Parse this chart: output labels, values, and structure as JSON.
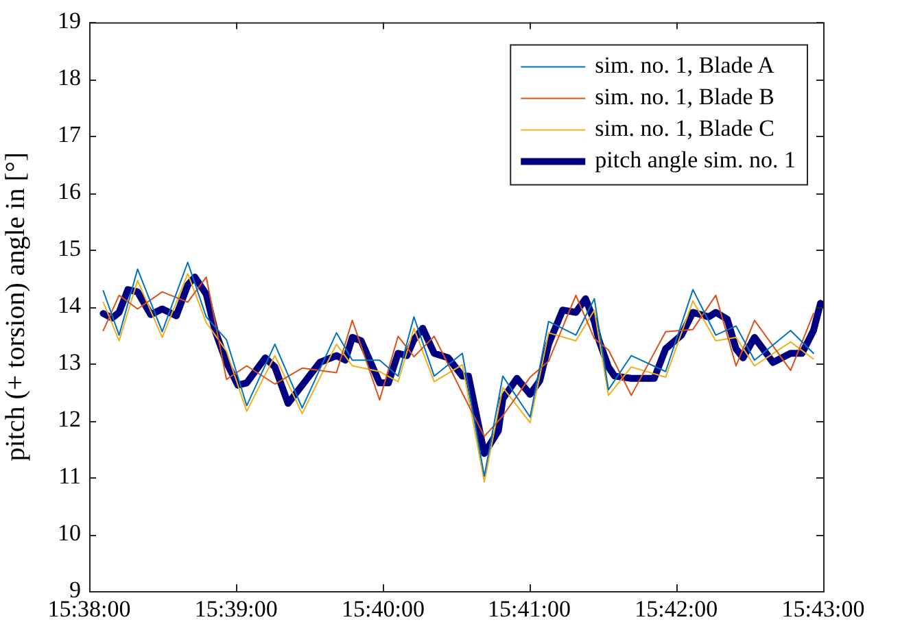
{
  "chart_data": {
    "type": "line",
    "ylabel": "pitch (+ torsion) angle in [°]",
    "xlim": [
      15.6333,
      15.7167
    ],
    "xticks": [
      {
        "value": 15.6333,
        "label": "15:38:00"
      },
      {
        "value": 15.65,
        "label": "15:39:00"
      },
      {
        "value": 15.6667,
        "label": "15:40:00"
      },
      {
        "value": 15.6833,
        "label": "15:41:00"
      },
      {
        "value": 15.7,
        "label": "15:42:00"
      },
      {
        "value": 15.7167,
        "label": "15:43:00"
      }
    ],
    "ylim": [
      9,
      19
    ],
    "yticks": [
      9,
      10,
      11,
      12,
      13,
      14,
      15,
      16,
      17,
      18,
      19
    ],
    "grid": false,
    "legend": "top right",
    "marker": "none",
    "line_style": "solid",
    "series": [
      {
        "name": "sim. no. 1, Blade A",
        "color": "#0072bd",
        "x": [
          15.6349,
          15.6367,
          15.6388,
          15.6416,
          15.6445,
          15.6466,
          15.6489,
          15.6512,
          15.6544,
          15.6575,
          15.6614,
          15.6632,
          15.6663,
          15.6684,
          15.6702,
          15.6725,
          15.6757,
          15.6782,
          15.6803,
          15.6834,
          15.6855,
          15.6886,
          15.6907,
          15.6923,
          15.6949,
          15.6988,
          15.7019,
          15.7045,
          15.7068,
          15.7089,
          15.713,
          15.7156
        ],
        "values": [
          14.28,
          13.5,
          14.66,
          13.56,
          14.78,
          13.82,
          13.42,
          12.26,
          13.34,
          12.22,
          13.54,
          13.06,
          13.06,
          12.78,
          13.82,
          12.78,
          13.18,
          11.02,
          12.78,
          12.06,
          13.74,
          13.5,
          14.14,
          12.54,
          13.14,
          12.86,
          14.3,
          13.5,
          13.66,
          13.06,
          13.58,
          13.18
        ]
      },
      {
        "name": "sim. no. 1, Blade B",
        "color": "#d95319",
        "x": [
          15.6349,
          15.6367,
          15.6388,
          15.6416,
          15.6445,
          15.6466,
          15.6489,
          15.6512,
          15.6544,
          15.6575,
          15.6614,
          15.6632,
          15.6663,
          15.6684,
          15.6702,
          15.6725,
          15.6757,
          15.6782,
          15.6803,
          15.6834,
          15.6855,
          15.6886,
          15.6907,
          15.6923,
          15.6949,
          15.6988,
          15.7019,
          15.7045,
          15.7068,
          15.7089,
          15.713,
          15.7156
        ],
        "values": [
          13.58,
          14.2,
          13.96,
          14.26,
          14.08,
          14.52,
          12.72,
          12.96,
          12.64,
          12.92,
          12.84,
          13.76,
          12.36,
          13.48,
          13.12,
          13.48,
          12.48,
          11.72,
          12.08,
          12.76,
          13.04,
          14.2,
          13.44,
          13.24,
          12.44,
          13.56,
          13.6,
          14.2,
          12.96,
          13.76,
          12.88,
          13.88
        ]
      },
      {
        "name": "sim. no. 1, Blade C",
        "color": "#edb120",
        "x": [
          15.6349,
          15.6367,
          15.6388,
          15.6416,
          15.6445,
          15.6466,
          15.6489,
          15.6512,
          15.6544,
          15.6575,
          15.6614,
          15.6632,
          15.6663,
          15.6684,
          15.6702,
          15.6725,
          15.6757,
          15.6782,
          15.6803,
          15.6834,
          15.6855,
          15.6886,
          15.6907,
          15.6923,
          15.6949,
          15.6988,
          15.7019,
          15.7045,
          15.7068,
          15.7089,
          15.713,
          15.7156
        ],
        "values": [
          14.08,
          13.4,
          14.46,
          13.46,
          14.58,
          13.72,
          13.22,
          12.16,
          13.14,
          12.12,
          13.34,
          12.96,
          12.86,
          12.68,
          13.62,
          12.68,
          12.98,
          10.92,
          12.58,
          11.96,
          13.54,
          13.4,
          13.94,
          12.44,
          12.94,
          12.76,
          14.1,
          13.4,
          13.46,
          12.96,
          13.38,
          13.08
        ]
      },
      {
        "name": "pitch angle sim. no. 1",
        "color": "#000080",
        "x": [
          15.6349,
          15.6359,
          15.6367,
          15.6377,
          15.6388,
          15.6403,
          15.6416,
          15.6432,
          15.6445,
          15.6453,
          15.6466,
          15.6476,
          15.6489,
          15.6502,
          15.6512,
          15.6533,
          15.6544,
          15.6559,
          15.6575,
          15.6595,
          15.6614,
          15.6624,
          15.6632,
          15.6642,
          15.6663,
          15.6673,
          15.6684,
          15.6694,
          15.6702,
          15.6712,
          15.6725,
          15.6741,
          15.6757,
          15.6764,
          15.6782,
          15.6798,
          15.6803,
          15.6819,
          15.6834,
          15.6845,
          15.6855,
          15.6871,
          15.6886,
          15.6897,
          15.6907,
          15.6912,
          15.6923,
          15.693,
          15.6949,
          15.6975,
          15.6988,
          15.7006,
          15.7019,
          15.7037,
          15.7045,
          15.7058,
          15.7068,
          15.7076,
          15.7089,
          15.711,
          15.713,
          15.7143,
          15.7156,
          15.7164
        ],
        "values": [
          13.88,
          13.8,
          13.9,
          14.3,
          14.26,
          13.86,
          13.96,
          13.84,
          14.38,
          14.52,
          14.22,
          13.58,
          13.02,
          12.62,
          12.66,
          13.1,
          12.94,
          12.3,
          12.62,
          13.02,
          13.14,
          13.06,
          13.46,
          13.4,
          12.66,
          12.66,
          13.18,
          13.14,
          13.42,
          13.62,
          13.18,
          13.1,
          12.78,
          12.78,
          11.42,
          11.82,
          12.38,
          12.74,
          12.46,
          12.7,
          13.34,
          13.94,
          13.9,
          14.14,
          13.74,
          13.42,
          12.94,
          12.78,
          12.74,
          12.74,
          13.26,
          13.5,
          13.9,
          13.82,
          13.9,
          13.78,
          13.26,
          13.1,
          13.46,
          13.02,
          13.18,
          13.18,
          13.58,
          14.06
        ]
      }
    ]
  }
}
